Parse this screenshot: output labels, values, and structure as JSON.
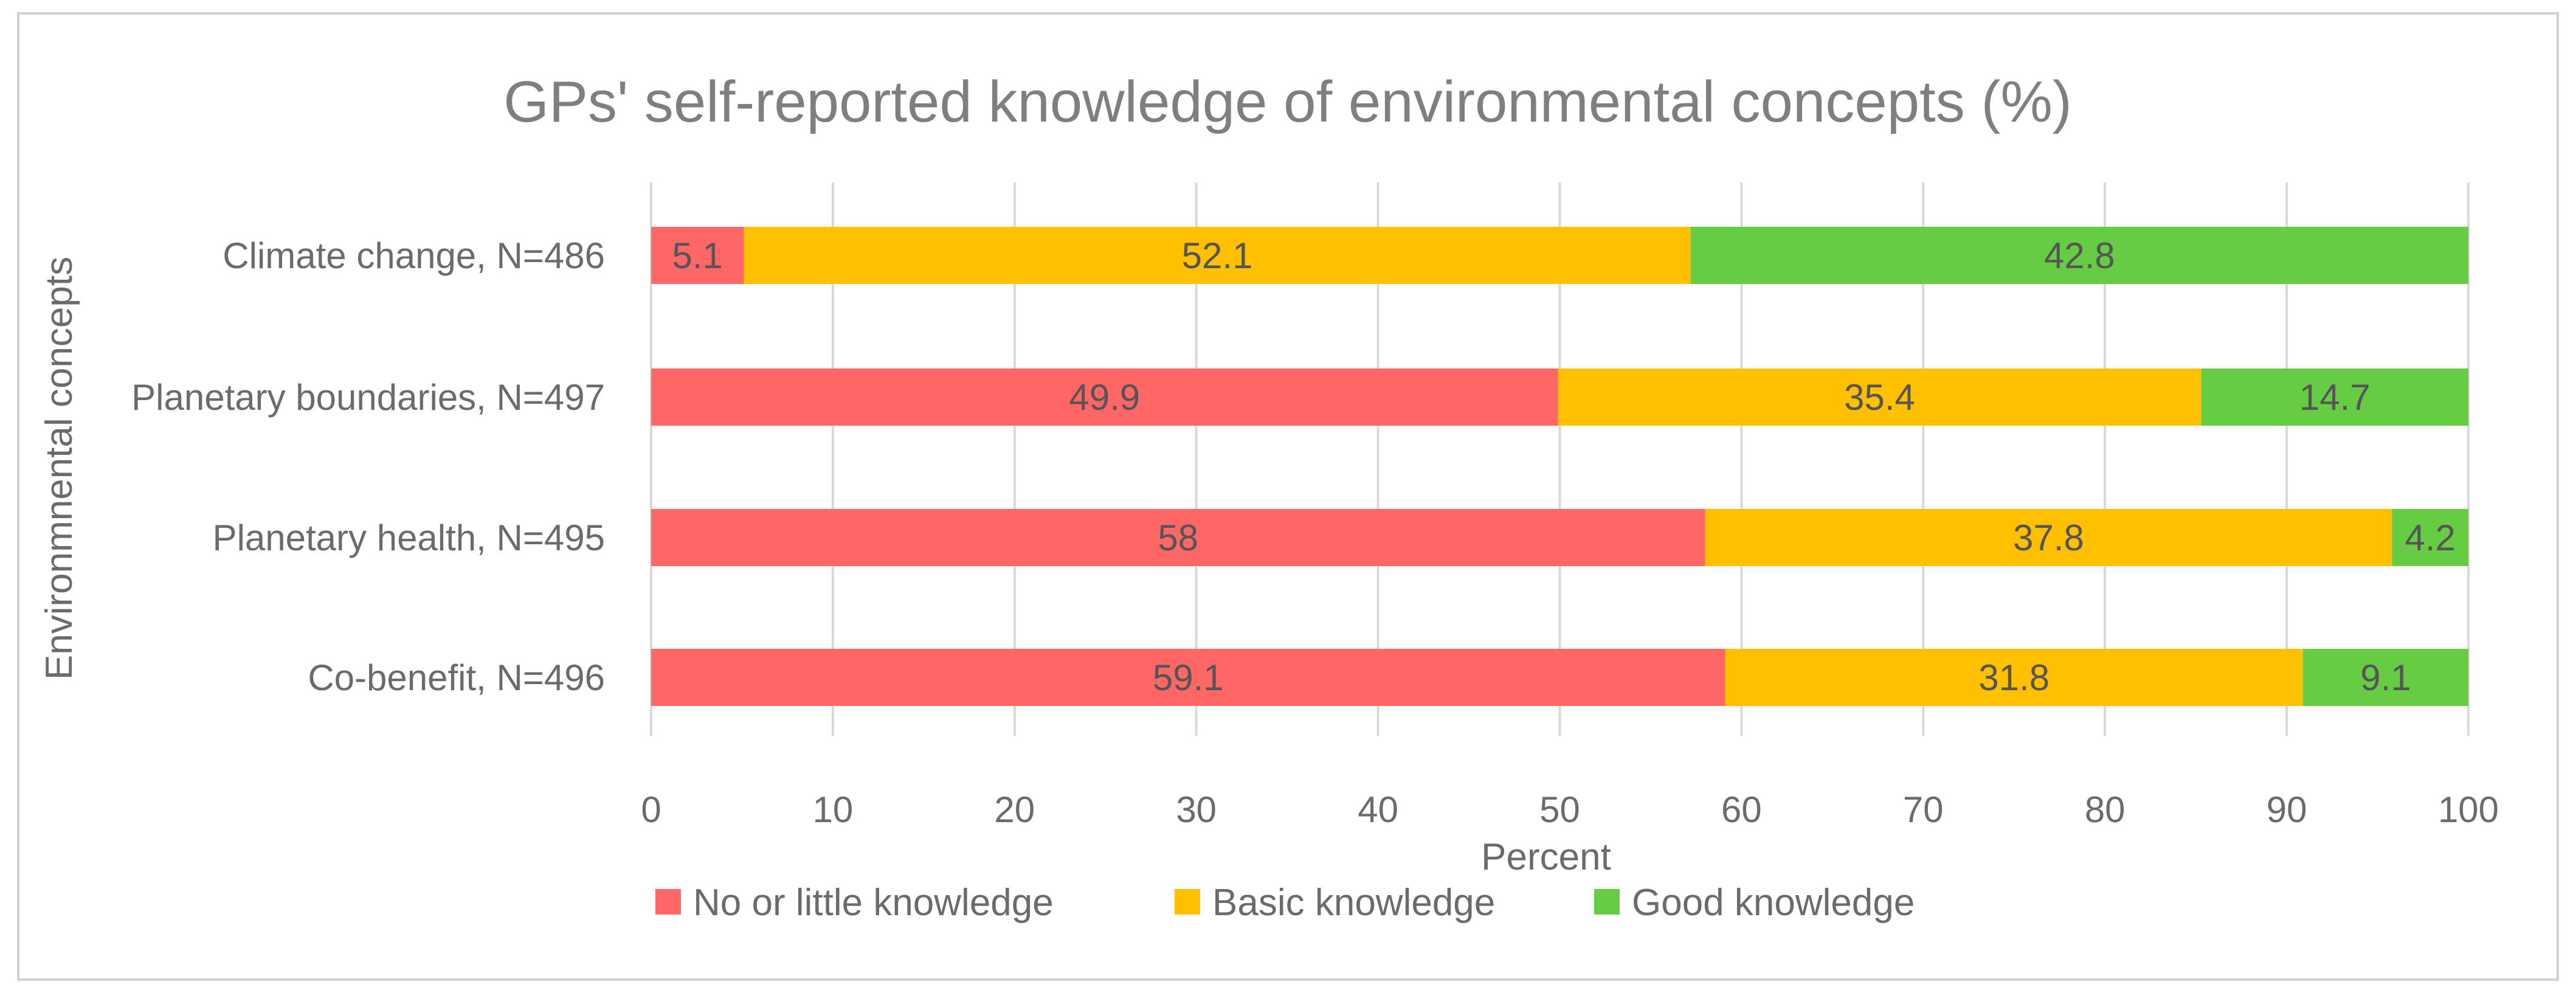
{
  "chart_data": {
    "type": "bar",
    "orientation": "horizontal",
    "stacked": true,
    "title": "GPs' self-reported knowledge of environmental concepts (%)",
    "xlabel": "Percent",
    "ylabel": "Environmnental concepts",
    "xlim": [
      0,
      100
    ],
    "xticks": [
      0,
      10,
      20,
      30,
      40,
      50,
      60,
      70,
      80,
      90,
      100
    ],
    "grid": true,
    "legend_position": "bottom",
    "categories": [
      "Climate change, N=486",
      "Planetary boundaries, N=497",
      "Planetary health, N=495",
      "Co-benefit, N=496"
    ],
    "series": [
      {
        "name": "No or little knowledge",
        "color": "#ff6666",
        "values": [
          5.1,
          49.9,
          58,
          59.1
        ]
      },
      {
        "name": "Basic knowledge",
        "color": "#ffc000",
        "values": [
          52.1,
          35.4,
          37.8,
          31.8
        ]
      },
      {
        "name": "Good knowledge",
        "color": "#66cc44",
        "values": [
          42.8,
          14.7,
          4.2,
          9.1
        ]
      }
    ]
  }
}
